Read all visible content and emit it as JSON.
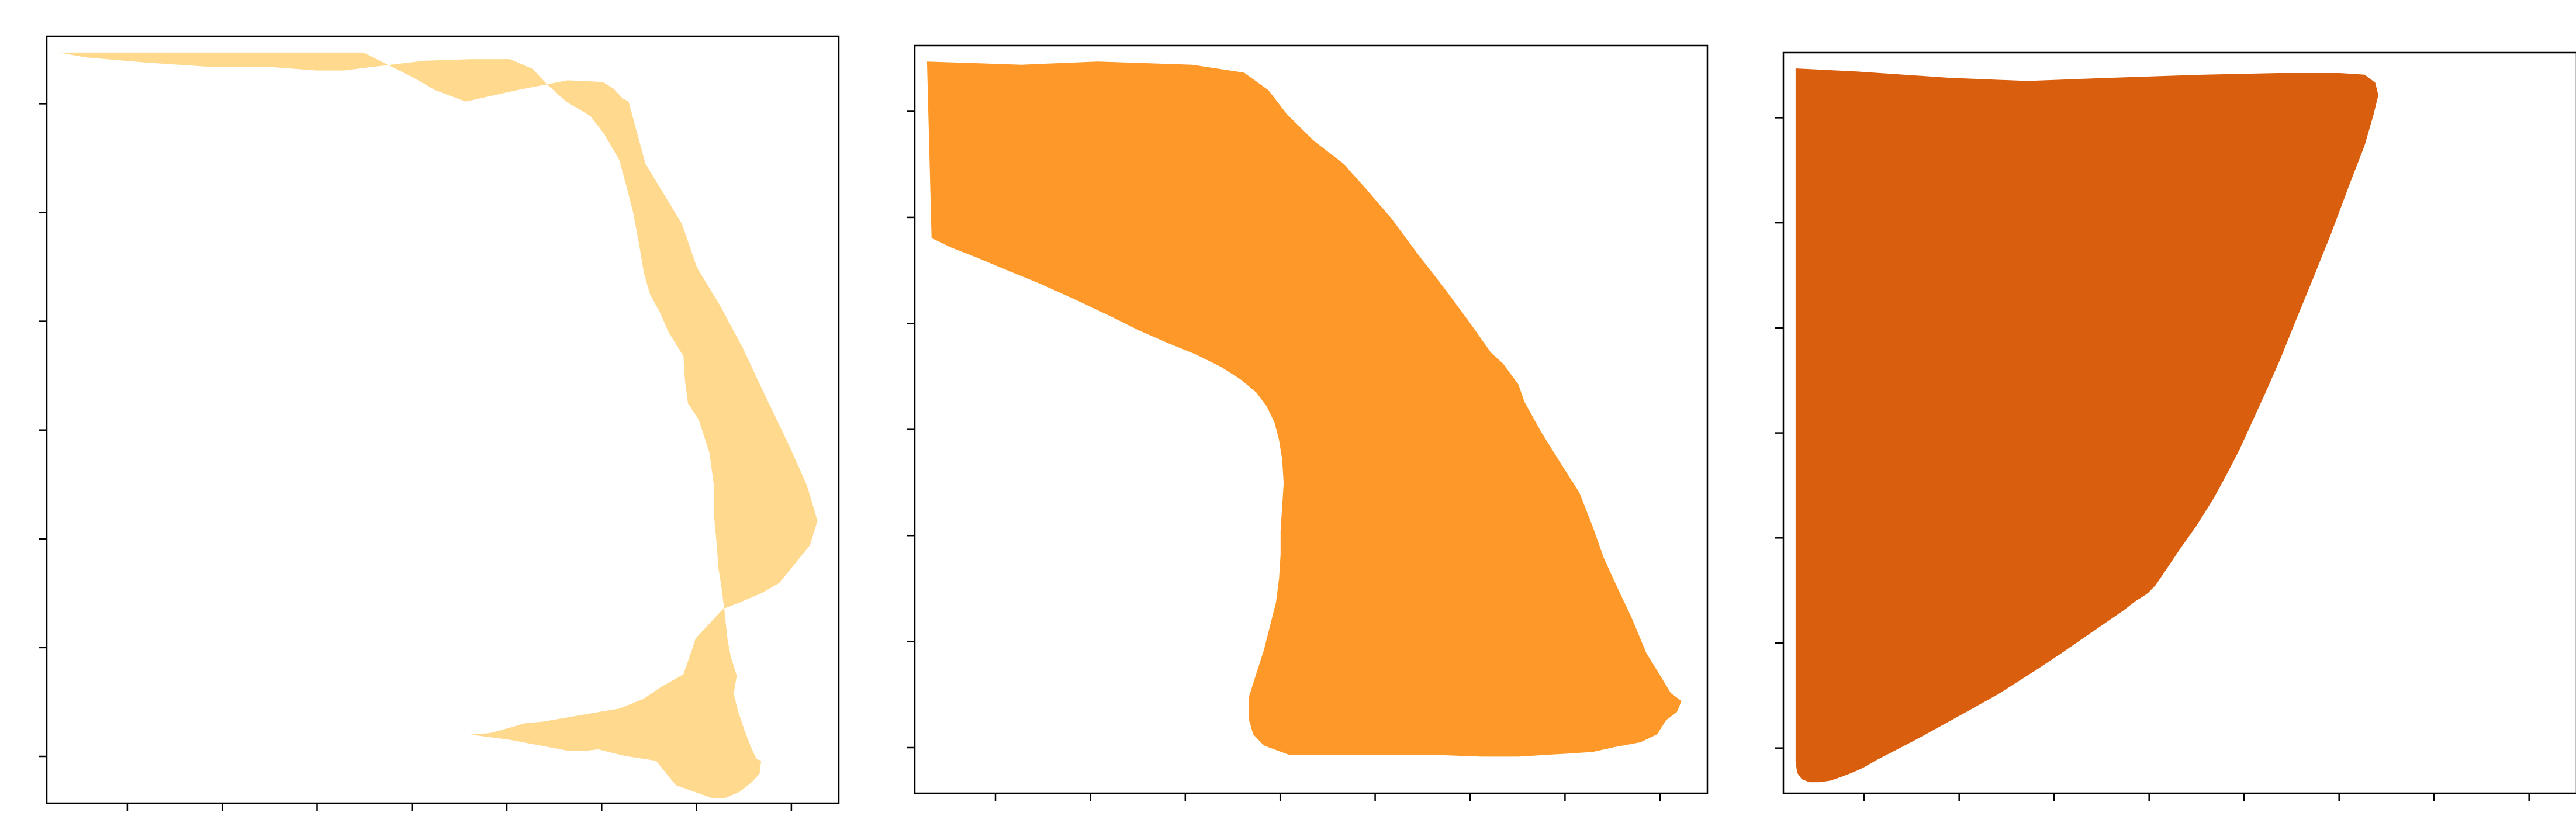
{
  "figure": {
    "panels": [
      {
        "id": "panel-1",
        "title": "",
        "fill_color": "#FED98E",
        "x_tick_count": 8,
        "y_tick_count": 7,
        "outline_points": [
          [
            8,
            10
          ],
          [
            75,
            10
          ],
          [
            137,
            10
          ],
          [
            208,
            10
          ],
          [
            240,
            25
          ],
          [
            255,
            33
          ],
          [
            275,
            40
          ],
          [
            309,
            33
          ],
          [
            342,
            27
          ],
          [
            365,
            28
          ],
          [
            372,
            32
          ],
          [
            378,
            38
          ],
          [
            382,
            40
          ],
          [
            393,
            78
          ],
          [
            417,
            115
          ],
          [
            427,
            142
          ],
          [
            442,
            165
          ],
          [
            457,
            191
          ],
          [
            470,
            217
          ],
          [
            487,
            250
          ],
          [
            499,
            275
          ],
          [
            506,
            297
          ],
          [
            501,
            312
          ],
          [
            481,
            335
          ],
          [
            470,
            341
          ],
          [
            455,
            347
          ],
          [
            444,
            351
          ],
          [
            426,
            369
          ],
          [
            424,
            375
          ],
          [
            418,
            391
          ],
          [
            403,
            399
          ],
          [
            392,
            406
          ],
          [
            376,
            412
          ],
          [
            357,
            415
          ],
          [
            326,
            420
          ],
          [
            314,
            421
          ],
          [
            303,
            424
          ],
          [
            291,
            427
          ],
          [
            278,
            428
          ],
          [
            278,
            428
          ],
          [
            303,
            431
          ],
          [
            343,
            438
          ],
          [
            353,
            438
          ],
          [
            362,
            437
          ],
          [
            379,
            441
          ],
          [
            400,
            444
          ],
          [
            413,
            459
          ],
          [
            437,
            467
          ],
          [
            445,
            467
          ],
          [
            455,
            463
          ],
          [
            463,
            457
          ],
          [
            468,
            452
          ],
          [
            469,
            444
          ],
          [
            466,
            443
          ],
          [
            462,
            435
          ],
          [
            458,
            425
          ],
          [
            454,
            414
          ],
          [
            451,
            403
          ],
          [
            453,
            392
          ],
          [
            449,
            380
          ],
          [
            447,
            370
          ],
          [
            445,
            353
          ],
          [
            443,
            338
          ],
          [
            441,
            326
          ],
          [
            440,
            313
          ],
          [
            438,
            293
          ],
          [
            438,
            275
          ],
          [
            435,
            255
          ],
          [
            428,
            235
          ],
          [
            421,
            225
          ],
          [
            419,
            211
          ],
          [
            418,
            196
          ],
          [
            408,
            181
          ],
          [
            403,
            170
          ],
          [
            396,
            158
          ],
          [
            392,
            145
          ],
          [
            389,
            128
          ],
          [
            385,
            108
          ],
          [
            380,
            90
          ],
          [
            376,
            76
          ],
          [
            366,
            60
          ],
          [
            357,
            49
          ],
          [
            341,
            40
          ],
          [
            329,
            30
          ],
          [
            319,
            20
          ],
          [
            304,
            14
          ],
          [
            279,
            14
          ],
          [
            248,
            15
          ],
          [
            212,
            19
          ],
          [
            195,
            21
          ],
          [
            177,
            21
          ],
          [
            149,
            19
          ],
          [
            111,
            19
          ],
          [
            64,
            16
          ],
          [
            26,
            13
          ],
          [
            8,
            10
          ]
        ]
      },
      {
        "id": "panel-2",
        "title": "",
        "fill_color": "#FE9929",
        "x_tick_count": 8,
        "y_tick_count": 7,
        "outline_points": [
          [
            8,
            10
          ],
          [
            70,
            12
          ],
          [
            120,
            10
          ],
          [
            182,
            12
          ],
          [
            216,
            17
          ],
          [
            232,
            28
          ],
          [
            244,
            43
          ],
          [
            262,
            60
          ],
          [
            281,
            74
          ],
          [
            296,
            90
          ],
          [
            313,
            109
          ],
          [
            330,
            131
          ],
          [
            347,
            152
          ],
          [
            364,
            174
          ],
          [
            378,
            193
          ],
          [
            386,
            200
          ],
          [
            396,
            213
          ],
          [
            400,
            224
          ],
          [
            411,
            243
          ],
          [
            426,
            266
          ],
          [
            436,
            281
          ],
          [
            445,
            303
          ],
          [
            452,
            322
          ],
          [
            462,
            343
          ],
          [
            470,
            359
          ],
          [
            480,
            382
          ],
          [
            489,
            396
          ],
          [
            496,
            407
          ],
          [
            503,
            412
          ],
          [
            500,
            419
          ],
          [
            493,
            424
          ],
          [
            487,
            433
          ],
          [
            476,
            438
          ],
          [
            459,
            441
          ],
          [
            445,
            444
          ],
          [
            430,
            445
          ],
          [
            412,
            446
          ],
          [
            396,
            447
          ],
          [
            372,
            447
          ],
          [
            345,
            446
          ],
          [
            316,
            446
          ],
          [
            289,
            446
          ],
          [
            264,
            446
          ],
          [
            246,
            446
          ],
          [
            229,
            440
          ],
          [
            222,
            433
          ],
          [
            219,
            423
          ],
          [
            219,
            410
          ],
          [
            224,
            395
          ],
          [
            229,
            380
          ],
          [
            233,
            365
          ],
          [
            237,
            350
          ],
          [
            239,
            335
          ],
          [
            240,
            320
          ],
          [
            240,
            305
          ],
          [
            241,
            290
          ],
          [
            242,
            275
          ],
          [
            241,
            260
          ],
          [
            239,
            248
          ],
          [
            236,
            237
          ],
          [
            231,
            227
          ],
          [
            224,
            218
          ],
          [
            214,
            210
          ],
          [
            201,
            202
          ],
          [
            184,
            194
          ],
          [
            166,
            187
          ],
          [
            147,
            179
          ],
          [
            128,
            170
          ],
          [
            106,
            160
          ],
          [
            83,
            150
          ],
          [
            60,
            141
          ],
          [
            40,
            133
          ],
          [
            24,
            127
          ],
          [
            11,
            121
          ],
          [
            8,
            10
          ]
        ]
      },
      {
        "id": "panel-3",
        "title": "",
        "fill_color": "#D95F0E",
        "x_tick_count": 8,
        "y_tick_count": 7,
        "outline_points": [
          [
            8,
            10
          ],
          [
            48,
            12
          ],
          [
            109,
            16
          ],
          [
            160,
            18
          ],
          [
            214,
            16
          ],
          [
            276,
            14
          ],
          [
            324,
            13
          ],
          [
            365,
            13
          ],
          [
            381,
            14
          ],
          [
            388,
            19
          ],
          [
            390,
            27
          ],
          [
            387,
            39
          ],
          [
            381,
            59
          ],
          [
            371,
            84
          ],
          [
            359,
            115
          ],
          [
            347,
            144
          ],
          [
            336,
            170
          ],
          [
            326,
            194
          ],
          [
            316,
            216
          ],
          [
            307,
            235
          ],
          [
            299,
            252
          ],
          [
            291,
            267
          ],
          [
            282,
            283
          ],
          [
            271,
            300
          ],
          [
            260,
            315
          ],
          [
            251,
            328
          ],
          [
            244,
            338
          ],
          [
            239,
            343
          ],
          [
            236,
            345
          ],
          [
            231,
            348
          ],
          [
            223,
            354
          ],
          [
            211,
            362
          ],
          [
            196,
            372
          ],
          [
            181,
            382
          ],
          [
            167,
            391
          ],
          [
            154,
            399
          ],
          [
            141,
            407
          ],
          [
            130,
            413
          ],
          [
            117,
            420
          ],
          [
            102,
            428
          ],
          [
            87,
            436
          ],
          [
            73,
            443
          ],
          [
            61,
            449
          ],
          [
            52,
            454
          ],
          [
            45,
            457
          ],
          [
            37,
            460
          ],
          [
            31,
            462
          ],
          [
            24,
            463
          ],
          [
            17,
            463
          ],
          [
            12,
            461
          ],
          [
            9,
            457
          ],
          [
            8,
            450
          ],
          [
            8,
            10
          ]
        ]
      }
    ]
  }
}
